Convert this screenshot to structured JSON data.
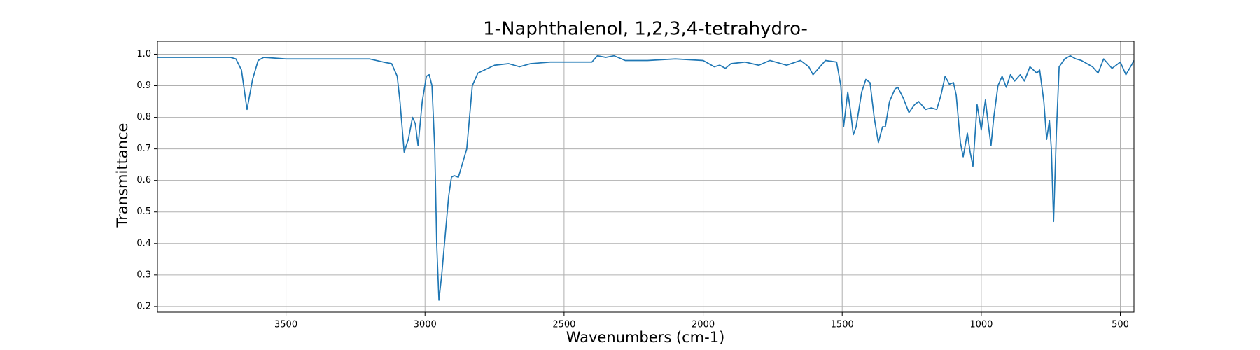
{
  "chart_data": {
    "type": "line",
    "title": "1-Naphthalenol, 1,2,3,4-tetrahydro-",
    "x_label": "Wavenumbers (cm-1)",
    "y_label": "Transmittance",
    "xlim": [
      3962,
      451
    ],
    "ylim": [
      0.182,
      1.041
    ],
    "xticks": [
      3500,
      3000,
      2500,
      2000,
      1500,
      1000,
      500
    ],
    "yticks": [
      0.2,
      0.3,
      0.4,
      0.5,
      0.6,
      0.7,
      0.8,
      0.9,
      {
        "value": 1,
        "label": "1.0"
      }
    ],
    "grid": true,
    "color": "#1f77b4",
    "x": [
      3962,
      3900,
      3800,
      3750,
      3700,
      3680,
      3660,
      3640,
      3620,
      3600,
      3580,
      3500,
      3400,
      3300,
      3200,
      3150,
      3120,
      3100,
      3090,
      3075,
      3060,
      3045,
      3035,
      3025,
      3010,
      2995,
      2985,
      2975,
      2965,
      2958,
      2950,
      2940,
      2925,
      2915,
      2905,
      2895,
      2880,
      2870,
      2860,
      2850,
      2840,
      2830,
      2810,
      2750,
      2700,
      2660,
      2620,
      2550,
      2450,
      2400,
      2380,
      2350,
      2320,
      2280,
      2200,
      2100,
      2000,
      1960,
      1940,
      1920,
      1900,
      1850,
      1800,
      1760,
      1700,
      1650,
      1620,
      1605,
      1580,
      1560,
      1520,
      1505,
      1495,
      1480,
      1470,
      1460,
      1450,
      1430,
      1415,
      1400,
      1385,
      1370,
      1355,
      1345,
      1330,
      1310,
      1300,
      1280,
      1260,
      1240,
      1225,
      1200,
      1180,
      1160,
      1145,
      1130,
      1115,
      1100,
      1090,
      1075,
      1065,
      1050,
      1040,
      1030,
      1015,
      1000,
      985,
      975,
      965,
      955,
      940,
      925,
      910,
      895,
      880,
      860,
      845,
      825,
      800,
      790,
      775,
      765,
      755,
      748,
      740,
      730,
      720,
      700,
      680,
      660,
      640,
      600,
      580,
      560,
      530,
      500,
      480,
      460,
      451
    ],
    "values": [
      0.99,
      0.99,
      0.99,
      0.99,
      0.99,
      0.985,
      0.95,
      0.825,
      0.92,
      0.98,
      0.99,
      0.985,
      0.985,
      0.985,
      0.985,
      0.975,
      0.97,
      0.93,
      0.85,
      0.69,
      0.73,
      0.8,
      0.78,
      0.71,
      0.85,
      0.93,
      0.935,
      0.9,
      0.7,
      0.4,
      0.22,
      0.3,
      0.45,
      0.55,
      0.61,
      0.615,
      0.61,
      0.64,
      0.67,
      0.7,
      0.8,
      0.9,
      0.94,
      0.965,
      0.97,
      0.96,
      0.97,
      0.975,
      0.975,
      0.975,
      0.995,
      0.99,
      0.995,
      0.98,
      0.98,
      0.985,
      0.98,
      0.96,
      0.965,
      0.955,
      0.97,
      0.975,
      0.965,
      0.98,
      0.965,
      0.98,
      0.96,
      0.935,
      0.96,
      0.98,
      0.975,
      0.9,
      0.77,
      0.88,
      0.82,
      0.745,
      0.77,
      0.88,
      0.92,
      0.91,
      0.8,
      0.72,
      0.77,
      0.77,
      0.85,
      0.89,
      0.895,
      0.86,
      0.815,
      0.84,
      0.85,
      0.825,
      0.83,
      0.825,
      0.87,
      0.93,
      0.905,
      0.91,
      0.87,
      0.72,
      0.675,
      0.75,
      0.69,
      0.645,
      0.84,
      0.76,
      0.855,
      0.78,
      0.71,
      0.8,
      0.9,
      0.93,
      0.895,
      0.935,
      0.915,
      0.935,
      0.915,
      0.96,
      0.94,
      0.95,
      0.85,
      0.73,
      0.79,
      0.7,
      0.47,
      0.75,
      0.96,
      0.985,
      0.995,
      0.985,
      0.98,
      0.96,
      0.94,
      0.985,
      0.955,
      0.975,
      0.935,
      0.965,
      0.98
    ]
  }
}
